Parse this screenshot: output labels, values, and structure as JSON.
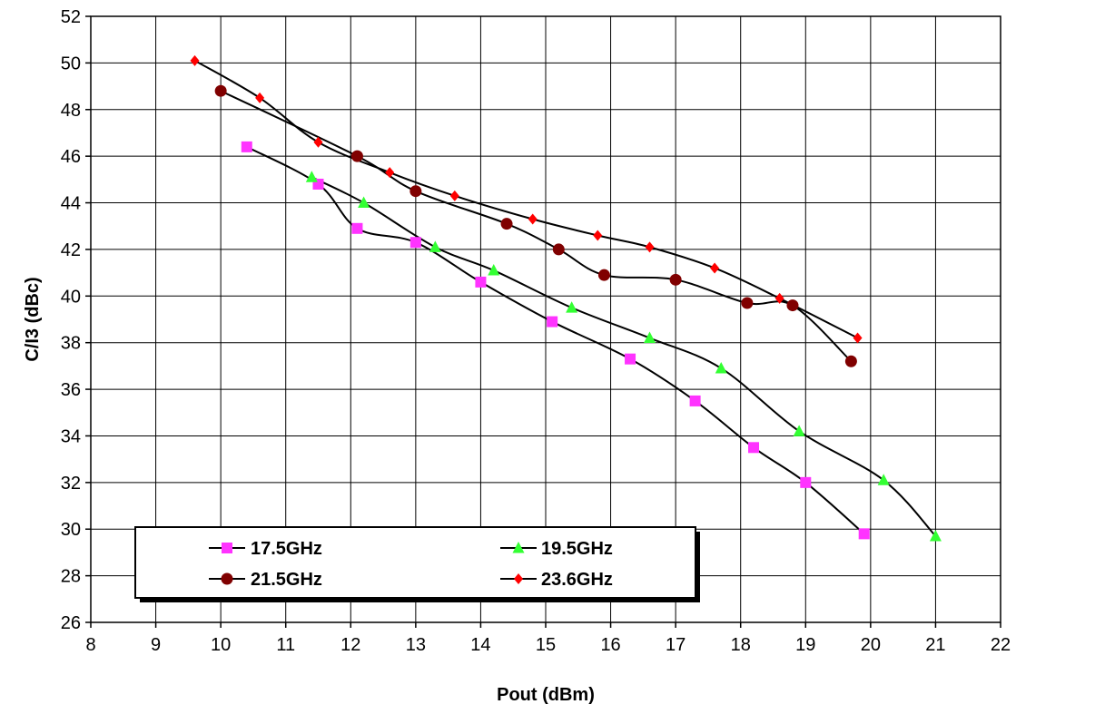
{
  "chart_data": {
    "type": "line",
    "title": "",
    "xlabel": "Pout (dBm)",
    "ylabel": "C/I3 (dBc)",
    "xlim": [
      8,
      22
    ],
    "ylim": [
      26,
      52
    ],
    "xticks": [
      8,
      9,
      10,
      11,
      12,
      13,
      14,
      15,
      16,
      17,
      18,
      19,
      20,
      21,
      22
    ],
    "yticks": [
      26,
      28,
      30,
      32,
      34,
      36,
      38,
      40,
      42,
      44,
      46,
      48,
      50,
      52
    ],
    "grid": true,
    "legend_position": "bottom-left",
    "series": [
      {
        "name": "17.5GHz",
        "color": "#ff33ff",
        "marker": "square",
        "x": [
          10.4,
          11.5,
          12.1,
          13.0,
          14.0,
          15.1,
          16.3,
          17.3,
          18.2,
          19.0,
          19.9
        ],
        "y": [
          46.4,
          44.8,
          42.9,
          42.3,
          40.6,
          38.9,
          37.3,
          35.5,
          33.5,
          32.0,
          29.8
        ]
      },
      {
        "name": "19.5GHz",
        "color": "#33ff33",
        "marker": "triangle",
        "x": [
          11.4,
          12.2,
          13.3,
          14.2,
          15.4,
          16.6,
          17.7,
          18.9,
          20.2,
          21.0
        ],
        "y": [
          45.1,
          44.0,
          42.1,
          41.1,
          39.5,
          38.2,
          36.9,
          34.2,
          32.1,
          29.7
        ]
      },
      {
        "name": "21.5GHz",
        "color": "#800000",
        "marker": "circle",
        "x": [
          10.0,
          12.1,
          13.0,
          14.4,
          15.2,
          15.9,
          17.0,
          18.1,
          18.8,
          19.7
        ],
        "y": [
          48.8,
          46.0,
          44.5,
          43.1,
          42.0,
          40.9,
          40.7,
          39.7,
          39.6,
          37.2
        ]
      },
      {
        "name": "23.6GHz",
        "color": "#ff0000",
        "marker": "diamond",
        "x": [
          9.6,
          10.6,
          11.5,
          12.6,
          13.6,
          14.8,
          15.8,
          16.6,
          17.6,
          18.6,
          19.8
        ],
        "y": [
          50.1,
          48.5,
          46.6,
          45.3,
          44.3,
          43.3,
          42.6,
          42.1,
          41.2,
          39.9,
          38.2
        ]
      }
    ]
  }
}
